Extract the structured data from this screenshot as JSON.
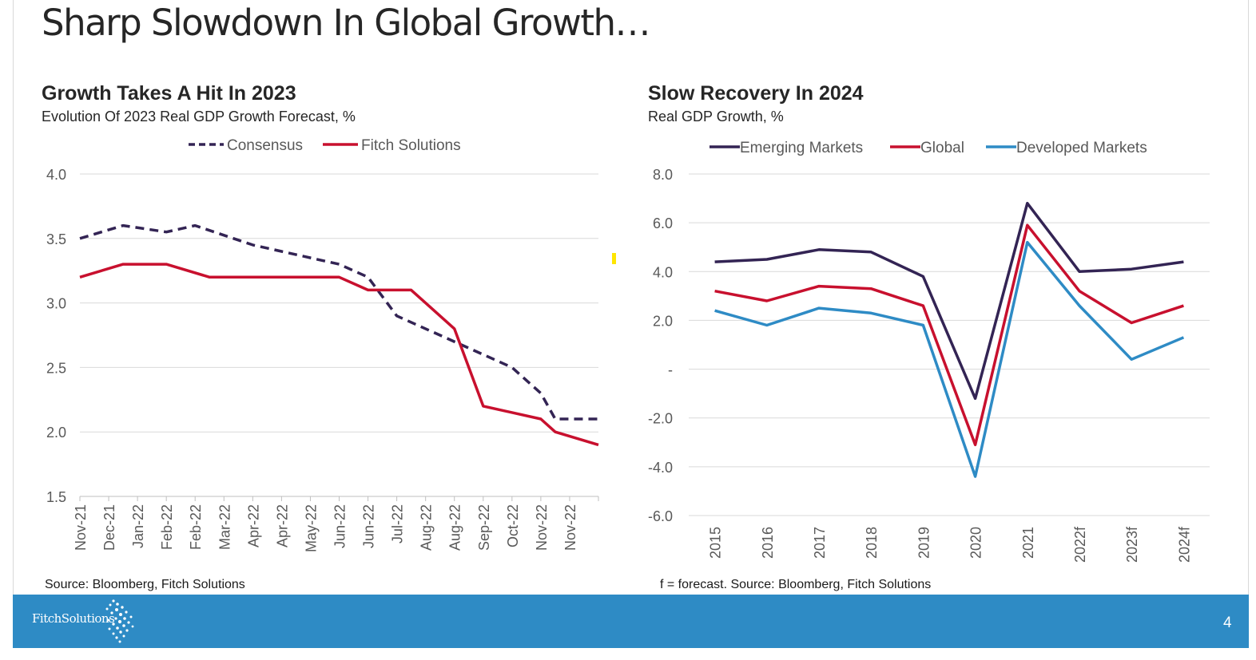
{
  "slide": {
    "title": "Sharp Slowdown In Global Growth…",
    "page_number": "4",
    "logo_text": "FitchSolutions"
  },
  "left_chart": {
    "title": "Growth Takes A Hit In 2023",
    "subtitle": "Evolution Of 2023 Real GDP Growth Forecast, %",
    "source": "Source: Bloomberg, Fitch Solutions"
  },
  "right_chart": {
    "title": "Slow Recovery In 2024",
    "subtitle": "Real GDP Growth, %",
    "source": "f = forecast.  Source: Bloomberg, Fitch Solutions"
  },
  "chart_data": [
    {
      "type": "line",
      "title": "Growth Takes A Hit In 2023",
      "subtitle": "Evolution Of 2023 Real GDP Growth Forecast, %",
      "categories": [
        "Nov-21",
        "Dec-21",
        "Jan-22",
        "Feb-22",
        "Feb-22",
        "Mar-22",
        "Apr-22",
        "Apr-22",
        "May-22",
        "Jun-22",
        "Jun-22",
        "Jul-22",
        "Aug-22",
        "Aug-22",
        "Sep-22",
        "Oct-22",
        "Nov-22",
        "Nov-22"
      ],
      "x_points": [
        0,
        1,
        1.5,
        2,
        3,
        3.5,
        4,
        5,
        6,
        7,
        7.5,
        8,
        9,
        10,
        10.5,
        11.5,
        12.5,
        13.5,
        14,
        15,
        16,
        16.5,
        17,
        18
      ],
      "series": [
        {
          "name": "Consensus",
          "color": "#332454",
          "dashed": true,
          "points": [
            [
              0,
              3.5
            ],
            [
              1.5,
              3.6
            ],
            [
              3,
              3.55
            ],
            [
              4,
              3.6
            ],
            [
              6,
              3.45
            ],
            [
              7,
              3.4
            ],
            [
              9,
              3.3
            ],
            [
              10,
              3.2
            ],
            [
              11,
              2.9
            ],
            [
              13,
              2.7
            ],
            [
              15,
              2.5
            ],
            [
              16,
              2.3
            ],
            [
              16.5,
              2.1
            ],
            [
              18,
              2.1
            ]
          ]
        },
        {
          "name": "Fitch Solutions",
          "color": "#c8102e",
          "dashed": false,
          "points": [
            [
              0,
              3.2
            ],
            [
              1.5,
              3.3
            ],
            [
              3,
              3.3
            ],
            [
              4.5,
              3.2
            ],
            [
              9,
              3.2
            ],
            [
              10,
              3.1
            ],
            [
              11.5,
              3.1
            ],
            [
              13,
              2.8
            ],
            [
              14,
              2.2
            ],
            [
              16,
              2.1
            ],
            [
              16.5,
              2.0
            ],
            [
              18,
              1.9
            ]
          ]
        }
      ],
      "ylim": [
        1.5,
        4.0
      ],
      "yticks": [
        "1.5",
        "2.0",
        "2.5",
        "3.0",
        "3.5",
        "4.0"
      ],
      "legend": "top-center",
      "grid": true
    },
    {
      "type": "line",
      "title": "Slow Recovery In 2024",
      "subtitle": "Real GDP Growth, %",
      "categories": [
        "2015",
        "2016",
        "2017",
        "2018",
        "2019",
        "2020",
        "2021",
        "2022f",
        "2023f",
        "2024f"
      ],
      "series": [
        {
          "name": "Emerging Markets",
          "color": "#332454",
          "values": [
            4.4,
            4.5,
            4.9,
            4.8,
            3.8,
            -1.2,
            6.8,
            4.0,
            4.1,
            4.4
          ]
        },
        {
          "name": "Global",
          "color": "#c8102e",
          "values": [
            3.2,
            2.8,
            3.4,
            3.3,
            2.6,
            -3.1,
            5.9,
            3.2,
            1.9,
            2.6
          ]
        },
        {
          "name": "Developed Markets",
          "color": "#2e8bc5",
          "values": [
            2.4,
            1.8,
            2.5,
            2.3,
            1.8,
            -4.4,
            5.2,
            2.6,
            0.4,
            1.3
          ]
        }
      ],
      "ylim": [
        -6.0,
        8.0
      ],
      "yticks": [
        "-6.0",
        "-4.0",
        "-2.0",
        "-",
        "2.0",
        "4.0",
        "6.0",
        "8.0"
      ],
      "legend": "top-center",
      "grid": true
    }
  ]
}
